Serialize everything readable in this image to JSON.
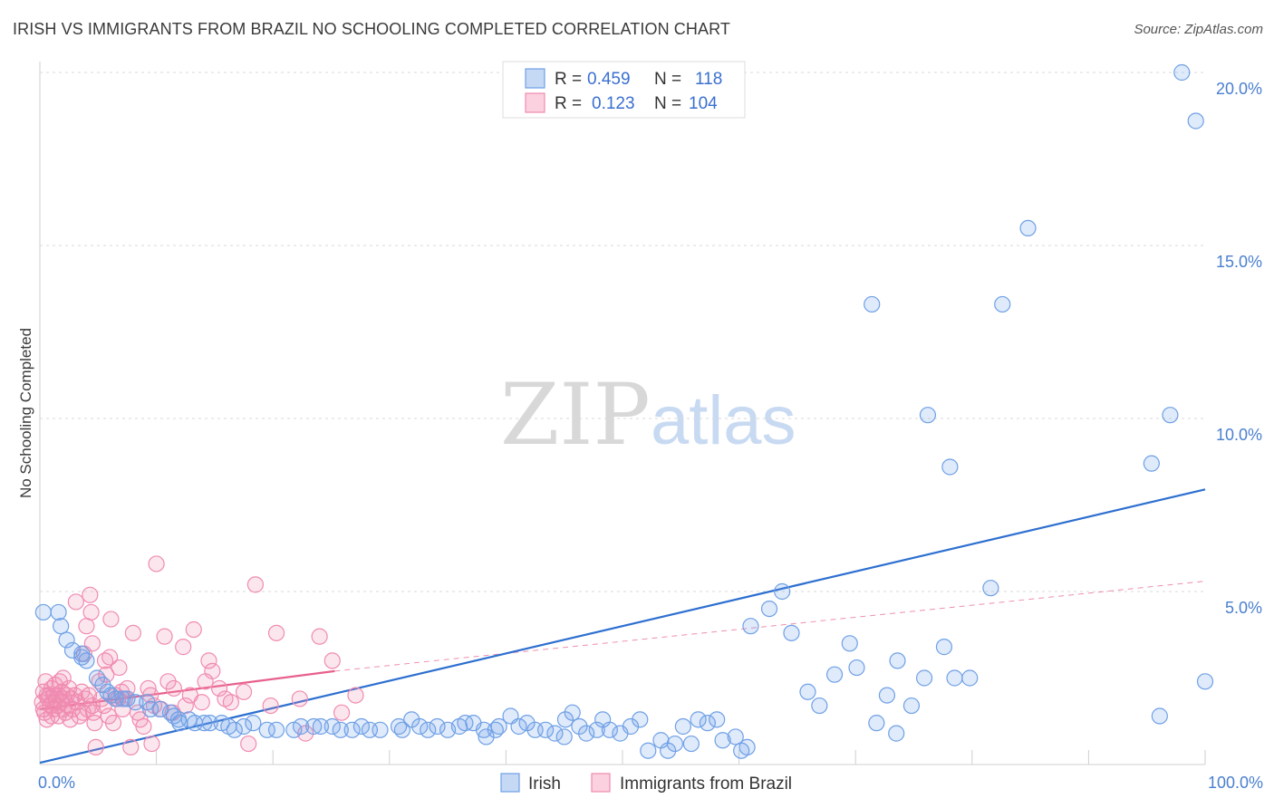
{
  "header": {
    "title": "IRISH VS IMMIGRANTS FROM BRAZIL NO SCHOOLING COMPLETED CORRELATION CHART",
    "source": "Source: ZipAtlas.com"
  },
  "watermark": {
    "zip": "ZIP",
    "atlas": "atlas"
  },
  "legend": {
    "rows": [
      {
        "r_label": "R =",
        "r_value": "0.459",
        "n_label": "N =",
        "n_value": "118"
      },
      {
        "r_label": "R =",
        "r_value": "0.123",
        "n_label": "N =",
        "n_value": "104"
      }
    ]
  },
  "colors": {
    "irish": "#6fa0e6",
    "irish_line": "#2d6fd0",
    "brazil": "#f08bb0",
    "brazil_line": "#e8608c"
  },
  "chart_data": {
    "type": "scatter",
    "title": "IRISH VS IMMIGRANTS FROM BRAZIL NO SCHOOLING COMPLETED CORRELATION CHART",
    "xlabel": "",
    "ylabel": "No Schooling Completed",
    "xlim": [
      0,
      100
    ],
    "ylim": [
      0,
      20.8
    ],
    "x_tick_labels": [
      "0.0%",
      "100.0%"
    ],
    "y_ticks": [
      5,
      10,
      15,
      20
    ],
    "y_tick_labels": [
      "5.0%",
      "10.0%",
      "15.0%",
      "20.0%"
    ],
    "legend_position": "top-center",
    "bottom_legend": [
      "Irish",
      "Immigrants from Brazil"
    ],
    "series": [
      {
        "name": "Irish",
        "R": 0.459,
        "N": 118,
        "trend": {
          "x": [
            0,
            100
          ],
          "y": [
            0.05,
            7.95
          ]
        },
        "points": [
          [
            0.3,
            4.4
          ],
          [
            1.6,
            4.4
          ],
          [
            1.8,
            4.0
          ],
          [
            2.3,
            3.6
          ],
          [
            2.8,
            3.3
          ],
          [
            3.6,
            3.2
          ],
          [
            3.6,
            3.1
          ],
          [
            4.0,
            3.0
          ],
          [
            4.9,
            2.5
          ],
          [
            5.4,
            2.3
          ],
          [
            5.8,
            2.1
          ],
          [
            6.1,
            2.0
          ],
          [
            6.5,
            1.9
          ],
          [
            7.1,
            1.9
          ],
          [
            7.5,
            1.9
          ],
          [
            8.2,
            1.8
          ],
          [
            9.2,
            1.8
          ],
          [
            9.5,
            1.6
          ],
          [
            10.3,
            1.6
          ],
          [
            11.2,
            1.5
          ],
          [
            11.5,
            1.4
          ],
          [
            11.9,
            1.3
          ],
          [
            12.0,
            1.2
          ],
          [
            12.8,
            1.3
          ],
          [
            13.3,
            1.2
          ],
          [
            14.1,
            1.2
          ],
          [
            14.6,
            1.2
          ],
          [
            15.6,
            1.2
          ],
          [
            16.2,
            1.1
          ],
          [
            16.7,
            1.0
          ],
          [
            17.5,
            1.1
          ],
          [
            18.3,
            1.2
          ],
          [
            19.5,
            1.0
          ],
          [
            20.3,
            1.0
          ],
          [
            21.8,
            1.0
          ],
          [
            22.4,
            1.1
          ],
          [
            23.5,
            1.1
          ],
          [
            24.1,
            1.1
          ],
          [
            25.1,
            1.1
          ],
          [
            25.8,
            1.0
          ],
          [
            26.8,
            1.0
          ],
          [
            27.6,
            1.1
          ],
          [
            28.3,
            1.0
          ],
          [
            29.2,
            1.0
          ],
          [
            30.8,
            1.1
          ],
          [
            31.1,
            1.0
          ],
          [
            31.9,
            1.3
          ],
          [
            32.6,
            1.1
          ],
          [
            33.3,
            1.0
          ],
          [
            34.1,
            1.1
          ],
          [
            35.0,
            1.0
          ],
          [
            36.0,
            1.1
          ],
          [
            36.5,
            1.2
          ],
          [
            37.2,
            1.2
          ],
          [
            38.1,
            1.0
          ],
          [
            38.3,
            0.8
          ],
          [
            39.1,
            1.0
          ],
          [
            39.4,
            1.1
          ],
          [
            40.4,
            1.4
          ],
          [
            41.1,
            1.1
          ],
          [
            41.8,
            1.2
          ],
          [
            42.5,
            1.0
          ],
          [
            43.4,
            1.0
          ],
          [
            44.2,
            0.9
          ],
          [
            45.0,
            0.8
          ],
          [
            45.1,
            1.3
          ],
          [
            45.7,
            1.5
          ],
          [
            46.3,
            1.1
          ],
          [
            46.9,
            0.9
          ],
          [
            47.8,
            1.0
          ],
          [
            48.3,
            1.3
          ],
          [
            48.9,
            1.0
          ],
          [
            49.8,
            0.9
          ],
          [
            50.7,
            1.1
          ],
          [
            51.5,
            1.3
          ],
          [
            52.2,
            0.4
          ],
          [
            53.3,
            0.7
          ],
          [
            53.9,
            0.4
          ],
          [
            54.5,
            0.6
          ],
          [
            55.2,
            1.1
          ],
          [
            55.9,
            0.6
          ],
          [
            56.5,
            1.3
          ],
          [
            57.3,
            1.2
          ],
          [
            58.1,
            1.3
          ],
          [
            58.6,
            0.7
          ],
          [
            59.7,
            0.8
          ],
          [
            60.2,
            0.4
          ],
          [
            60.7,
            0.5
          ],
          [
            61.0,
            4.0
          ],
          [
            62.6,
            4.5
          ],
          [
            63.7,
            5.0
          ],
          [
            64.5,
            3.8
          ],
          [
            65.9,
            2.1
          ],
          [
            66.9,
            1.7
          ],
          [
            68.2,
            2.6
          ],
          [
            69.5,
            3.5
          ],
          [
            70.1,
            2.8
          ],
          [
            71.4,
            13.3
          ],
          [
            71.8,
            1.2
          ],
          [
            72.7,
            2.0
          ],
          [
            73.5,
            0.9
          ],
          [
            73.6,
            3.0
          ],
          [
            74.8,
            1.7
          ],
          [
            75.9,
            2.5
          ],
          [
            76.2,
            10.1
          ],
          [
            77.6,
            3.4
          ],
          [
            78.1,
            8.6
          ],
          [
            78.5,
            2.5
          ],
          [
            79.8,
            2.5
          ],
          [
            81.6,
            5.1
          ],
          [
            82.6,
            13.3
          ],
          [
            84.8,
            15.5
          ],
          [
            95.4,
            8.7
          ],
          [
            96.1,
            1.4
          ],
          [
            97.0,
            10.1
          ],
          [
            98.0,
            20.0
          ],
          [
            99.2,
            18.6
          ],
          [
            100.0,
            2.4
          ]
        ]
      },
      {
        "name": "Immigrants from Brazil",
        "R": 0.123,
        "N": 104,
        "trend": {
          "x": [
            0,
            25.3
          ],
          "y": [
            1.6,
            2.7
          ]
        },
        "trend_dashed": {
          "x": [
            25.3,
            100
          ],
          "y": [
            2.7,
            5.3
          ]
        },
        "points": [
          [
            0.2,
            1.8
          ],
          [
            0.3,
            2.1
          ],
          [
            0.3,
            1.6
          ],
          [
            0.4,
            1.5
          ],
          [
            0.5,
            2.4
          ],
          [
            0.6,
            2.0
          ],
          [
            0.6,
            1.3
          ],
          [
            0.7,
            1.9
          ],
          [
            0.8,
            2.0
          ],
          [
            0.9,
            1.7
          ],
          [
            1.0,
            2.2
          ],
          [
            1.0,
            1.4
          ],
          [
            1.1,
            1.8
          ],
          [
            1.2,
            2.0
          ],
          [
            1.2,
            1.6
          ],
          [
            1.3,
            2.3
          ],
          [
            1.4,
            1.9
          ],
          [
            1.5,
            1.7
          ],
          [
            1.6,
            2.0
          ],
          [
            1.6,
            1.4
          ],
          [
            1.7,
            2.4
          ],
          [
            1.8,
            1.8
          ],
          [
            1.9,
            2.1
          ],
          [
            2.0,
            1.6
          ],
          [
            2.0,
            2.5
          ],
          [
            2.1,
            1.9
          ],
          [
            2.2,
            1.5
          ],
          [
            2.3,
            2.0
          ],
          [
            2.4,
            1.7
          ],
          [
            2.5,
            2.2
          ],
          [
            2.6,
            1.3
          ],
          [
            2.7,
            1.9
          ],
          [
            2.8,
            1.6
          ],
          [
            3.0,
            2.0
          ],
          [
            3.1,
            4.7
          ],
          [
            3.2,
            1.8
          ],
          [
            3.4,
            1.4
          ],
          [
            3.6,
            2.1
          ],
          [
            3.7,
            1.5
          ],
          [
            3.8,
            3.2
          ],
          [
            3.9,
            1.9
          ],
          [
            4.0,
            4.0
          ],
          [
            4.1,
            1.6
          ],
          [
            4.2,
            2.0
          ],
          [
            4.3,
            4.9
          ],
          [
            4.4,
            4.4
          ],
          [
            4.5,
            3.5
          ],
          [
            4.5,
            1.7
          ],
          [
            4.6,
            1.5
          ],
          [
            4.7,
            1.2
          ],
          [
            4.8,
            0.5
          ],
          [
            5.1,
            2.4
          ],
          [
            5.3,
            1.9
          ],
          [
            5.5,
            1.7
          ],
          [
            5.6,
            3.0
          ],
          [
            5.7,
            2.6
          ],
          [
            5.9,
            1.4
          ],
          [
            6.0,
            3.1
          ],
          [
            6.1,
            4.2
          ],
          [
            6.3,
            1.2
          ],
          [
            6.5,
            2.0
          ],
          [
            6.7,
            1.9
          ],
          [
            6.8,
            2.8
          ],
          [
            7.0,
            2.1
          ],
          [
            7.1,
            1.6
          ],
          [
            7.3,
            1.9
          ],
          [
            7.5,
            2.2
          ],
          [
            7.8,
            0.5
          ],
          [
            8.0,
            3.8
          ],
          [
            8.4,
            1.5
          ],
          [
            8.6,
            1.3
          ],
          [
            8.9,
            1.1
          ],
          [
            9.3,
            2.2
          ],
          [
            9.5,
            2.0
          ],
          [
            9.6,
            0.6
          ],
          [
            9.8,
            1.7
          ],
          [
            10.0,
            5.8
          ],
          [
            10.4,
            1.6
          ],
          [
            10.7,
            3.7
          ],
          [
            11.0,
            2.4
          ],
          [
            11.4,
            1.5
          ],
          [
            11.5,
            2.2
          ],
          [
            12.3,
            3.4
          ],
          [
            12.5,
            1.7
          ],
          [
            12.9,
            2.0
          ],
          [
            13.2,
            3.9
          ],
          [
            13.9,
            1.8
          ],
          [
            14.2,
            2.4
          ],
          [
            14.5,
            3.0
          ],
          [
            14.8,
            2.7
          ],
          [
            15.4,
            2.2
          ],
          [
            15.9,
            1.9
          ],
          [
            16.4,
            1.8
          ],
          [
            17.5,
            2.1
          ],
          [
            17.9,
            0.6
          ],
          [
            18.5,
            5.2
          ],
          [
            19.8,
            1.7
          ],
          [
            20.3,
            3.8
          ],
          [
            22.3,
            1.9
          ],
          [
            22.8,
            0.9
          ],
          [
            24.0,
            3.7
          ],
          [
            25.1,
            3.0
          ],
          [
            25.9,
            1.5
          ],
          [
            27.1,
            2.0
          ]
        ]
      }
    ]
  }
}
